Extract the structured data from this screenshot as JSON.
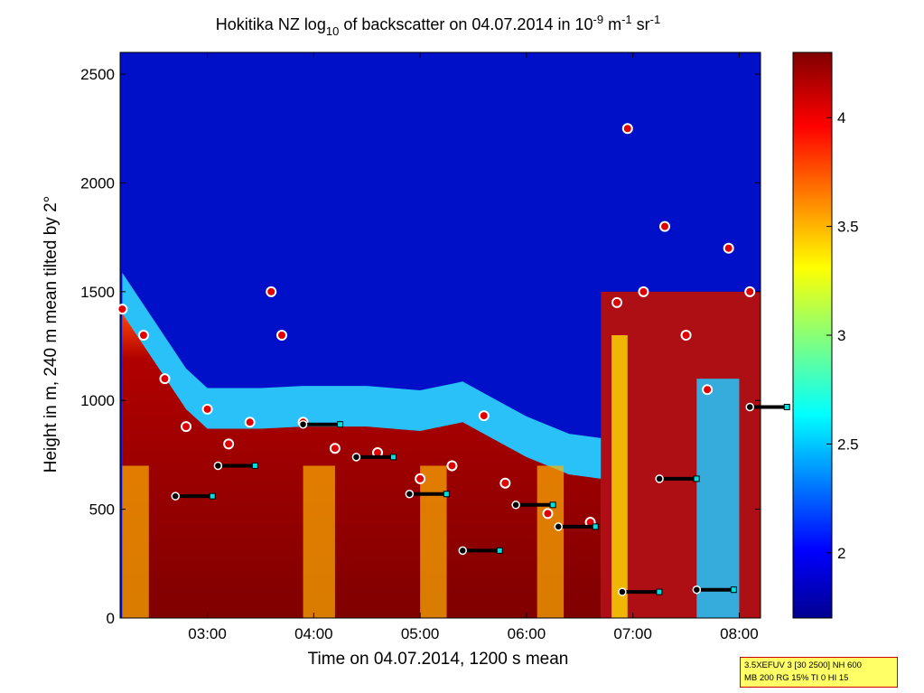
{
  "chart_data": {
    "type": "heatmap",
    "title_parts": {
      "prefix": "Hokitika NZ log",
      "base": "10",
      "middle": " of backscatter on 04.07.2014 in 10",
      "exp1": "-9",
      "unit1": " m",
      "exp2": "-1",
      "unit2": " sr",
      "exp3": "-1"
    },
    "xlabel": "Time on 04.07.2014, 1200 s mean",
    "ylabel": "Height in m, 240 m mean tilted by 2°",
    "x_ticks": [
      "03:00",
      "04:00",
      "05:00",
      "06:00",
      "07:00",
      "08:00"
    ],
    "x_tick_hours": [
      3,
      4,
      5,
      6,
      7,
      8
    ],
    "xlim_hours": [
      2.18,
      8.2
    ],
    "y_ticks": [
      0,
      500,
      1000,
      1500,
      2000,
      2500
    ],
    "ylim": [
      0,
      2600
    ],
    "colorbar": {
      "ticks": [
        2,
        2.5,
        3,
        3.5,
        4
      ],
      "range": [
        1.7,
        4.3
      ],
      "colormap": "jet"
    },
    "layers": {
      "surface_layer_top": [
        {
          "x": 2.2,
          "y": 1400
        },
        {
          "x": 2.5,
          "y": 1180
        },
        {
          "x": 2.8,
          "y": 960
        },
        {
          "x": 3.0,
          "y": 870
        },
        {
          "x": 3.5,
          "y": 870
        },
        {
          "x": 3.9,
          "y": 880
        },
        {
          "x": 4.5,
          "y": 880
        },
        {
          "x": 5.0,
          "y": 860
        },
        {
          "x": 5.4,
          "y": 900
        },
        {
          "x": 5.7,
          "y": 820
        },
        {
          "x": 6.0,
          "y": 740
        },
        {
          "x": 6.4,
          "y": 660
        },
        {
          "x": 6.7,
          "y": 640
        }
      ],
      "upper_boundary_markers": [
        {
          "x": 2.2,
          "y": 1420
        },
        {
          "x": 2.4,
          "y": 1300
        },
        {
          "x": 2.6,
          "y": 1100
        },
        {
          "x": 2.8,
          "y": 880
        },
        {
          "x": 3.0,
          "y": 960
        },
        {
          "x": 3.2,
          "y": 800
        },
        {
          "x": 3.4,
          "y": 900
        },
        {
          "x": 3.6,
          "y": 1500
        },
        {
          "x": 3.7,
          "y": 1300
        },
        {
          "x": 3.9,
          "y": 900
        },
        {
          "x": 4.2,
          "y": 780
        },
        {
          "x": 4.6,
          "y": 760
        },
        {
          "x": 5.0,
          "y": 640
        },
        {
          "x": 5.3,
          "y": 700
        },
        {
          "x": 5.6,
          "y": 930
        },
        {
          "x": 5.8,
          "y": 620
        },
        {
          "x": 6.2,
          "y": 480
        },
        {
          "x": 6.6,
          "y": 440
        },
        {
          "x": 6.85,
          "y": 1450
        },
        {
          "x": 6.95,
          "y": 2250
        },
        {
          "x": 7.1,
          "y": 1500
        },
        {
          "x": 7.3,
          "y": 1800
        },
        {
          "x": 7.5,
          "y": 1300
        },
        {
          "x": 7.7,
          "y": 1050
        },
        {
          "x": 7.9,
          "y": 1700
        },
        {
          "x": 8.1,
          "y": 1500
        }
      ],
      "mixing_layer_markers": [
        {
          "x": 2.7,
          "y": 560
        },
        {
          "x": 3.1,
          "y": 700
        },
        {
          "x": 3.9,
          "y": 890
        },
        {
          "x": 4.4,
          "y": 740
        },
        {
          "x": 4.9,
          "y": 570
        },
        {
          "x": 5.4,
          "y": 310
        },
        {
          "x": 5.9,
          "y": 520
        },
        {
          "x": 6.3,
          "y": 420
        },
        {
          "x": 6.9,
          "y": 120
        },
        {
          "x": 7.25,
          "y": 640
        },
        {
          "x": 7.6,
          "y": 130
        },
        {
          "x": 8.1,
          "y": 970
        }
      ]
    }
  },
  "legend": {
    "line1": "3.5XEFUV 3 [30 2500] NH 600",
    "line2": "MB 200 RG 15% TI 0 HI 15"
  }
}
